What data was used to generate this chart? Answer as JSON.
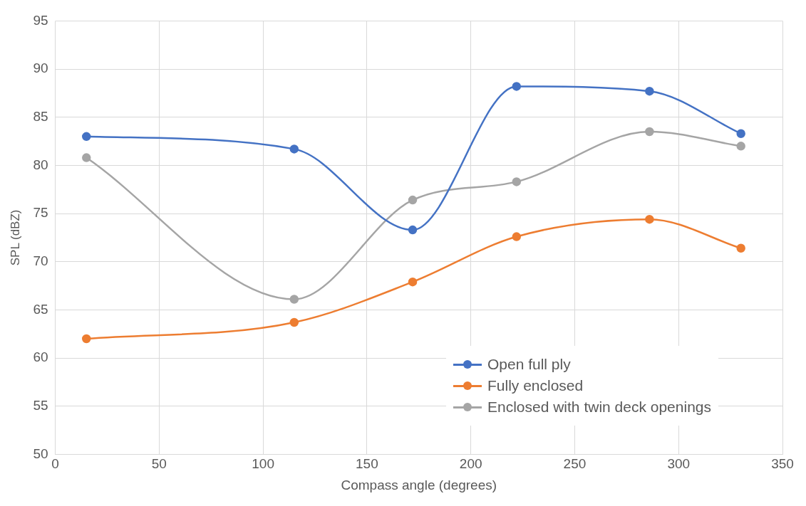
{
  "chart_data": {
    "type": "line",
    "xlabel": "Compass angle (degrees)",
    "ylabel": "SPL (dBZ)",
    "x": [
      15,
      115,
      172,
      222,
      286,
      330
    ],
    "series": [
      {
        "name": "Open full ply",
        "color": "#4472c4",
        "values": [
          83.0,
          81.7,
          73.3,
          88.2,
          87.7,
          83.3
        ]
      },
      {
        "name": "Fully enclosed",
        "color": "#ed7d31",
        "values": [
          62.0,
          63.7,
          67.9,
          72.6,
          74.4,
          71.4
        ]
      },
      {
        "name": "Enclosed with twin deck openings",
        "color": "#a5a5a5",
        "values": [
          80.8,
          66.1,
          76.4,
          78.3,
          83.5,
          82.0
        ]
      }
    ],
    "xlim": [
      0,
      350
    ],
    "xticks": [
      0,
      50,
      100,
      150,
      200,
      250,
      300,
      350
    ],
    "ylim": [
      50,
      95
    ],
    "yticks": [
      50,
      55,
      60,
      65,
      70,
      75,
      80,
      85,
      90,
      95
    ],
    "grid": true,
    "legend": "bottom right",
    "marker": "circle",
    "line_style": "solid"
  }
}
